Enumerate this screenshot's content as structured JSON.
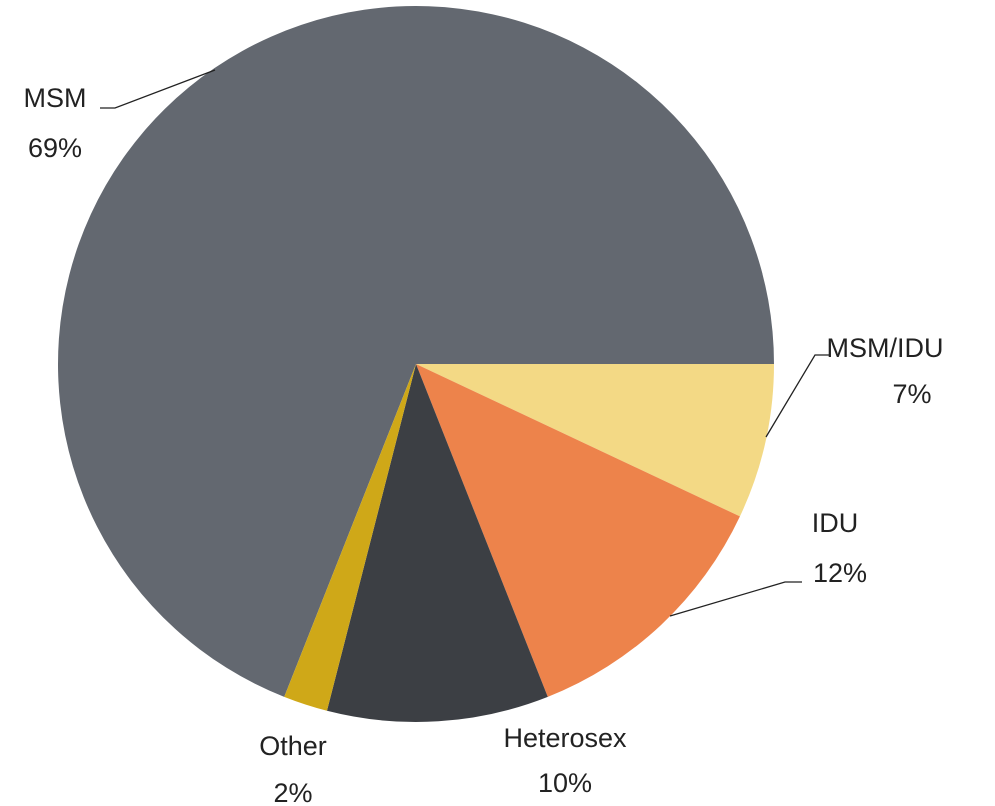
{
  "chart_data": {
    "type": "pie",
    "categories": [
      "MSM",
      "MSM/IDU",
      "IDU",
      "Heterosex",
      "Other"
    ],
    "values": [
      69,
      7,
      12,
      10,
      2
    ],
    "value_labels": [
      "69%",
      "7%",
      "12%",
      "10%",
      "2%"
    ],
    "colors": [
      "#636870",
      "#f3d985",
      "#ed834b",
      "#3c3f44",
      "#cfa818"
    ]
  }
}
